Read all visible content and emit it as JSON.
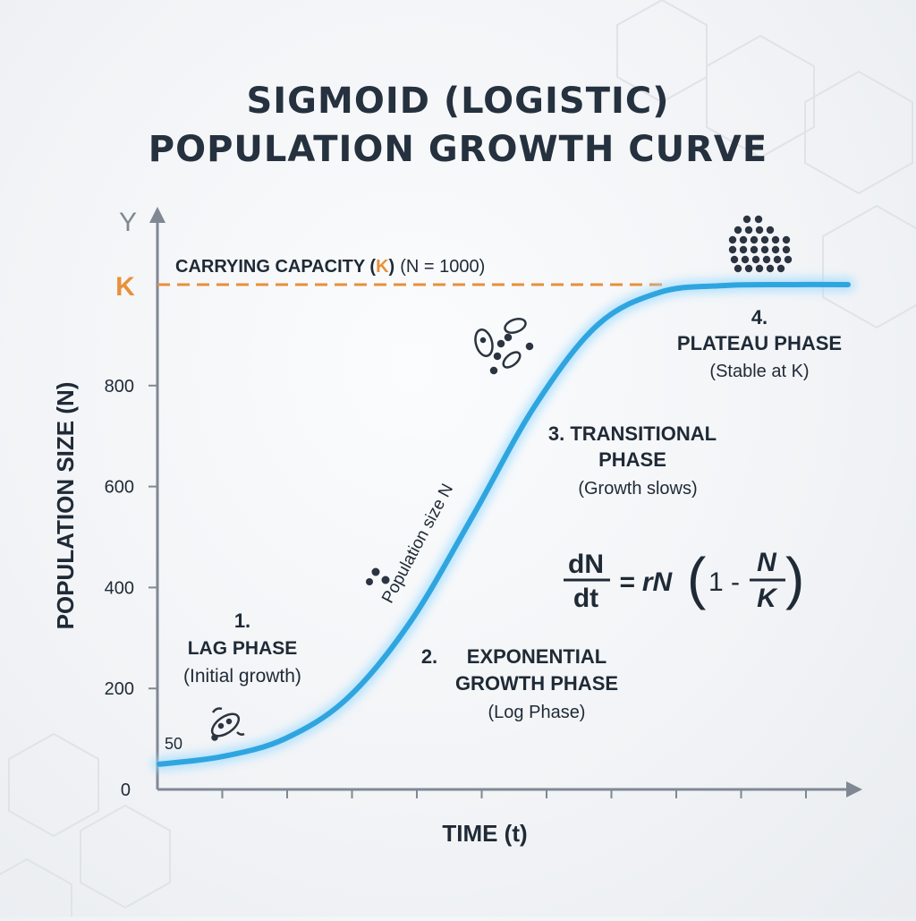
{
  "title": {
    "line1": "SIGMOID (LOGISTIC)",
    "line2": "POPULATION GROWTH CURVE"
  },
  "axes": {
    "y_letter": "Y",
    "y_label": "POPULATION SIZE (N)",
    "x_label": "TIME (t)",
    "y_ticks": [
      {
        "value": 0,
        "label": "0"
      },
      {
        "value": 200,
        "label": "200"
      },
      {
        "value": 400,
        "label": "400"
      },
      {
        "value": 600,
        "label": "600"
      },
      {
        "value": 800,
        "label": "800"
      }
    ],
    "k_marker": "K",
    "start_value_label": "50"
  },
  "capacity": {
    "prefix": "CARRYING CAPACITY (",
    "k": "K",
    "suffix": ")",
    "note": "(N = 1000)"
  },
  "curve_label": "Population size N",
  "phases": {
    "lag": {
      "number": "1.",
      "name": "LAG PHASE",
      "desc": "(Initial growth)"
    },
    "exponential": {
      "number": "2.",
      "name_line1": "EXPONENTIAL",
      "name_line2": "GROWTH PHASE",
      "desc": "(Log Phase)"
    },
    "transitional": {
      "name_line1": "3. TRANSITIONAL",
      "name_line2": "PHASE",
      "desc": "(Growth slows)"
    },
    "plateau": {
      "number": "4.",
      "name": "PLATEAU PHASE",
      "desc": "(Stable at K)"
    }
  },
  "equation": {
    "lhs_num": "dN",
    "lhs_den": "dt",
    "equals_r": "= rN",
    "one_minus": "1 -",
    "frac_num": "N",
    "frac_den": "K"
  },
  "chart_data": {
    "type": "line",
    "y_range": [
      0,
      1000
    ],
    "carrying_capacity": 1000,
    "initial_population": 50,
    "series": [
      {
        "x": [
          0,
          1,
          2,
          3,
          4,
          5,
          6,
          7,
          8,
          9,
          10,
          11
        ],
        "y": [
          50,
          65,
          100,
          180,
          330,
          540,
          760,
          920,
          985,
          998,
          1000,
          1000
        ]
      }
    ]
  },
  "colors": {
    "curve": "#2fa5e0",
    "curve_glow": "#9fdcff",
    "k_accent": "#e8903a",
    "axis": "#7f8893",
    "text_dark": "#1f2a36"
  }
}
